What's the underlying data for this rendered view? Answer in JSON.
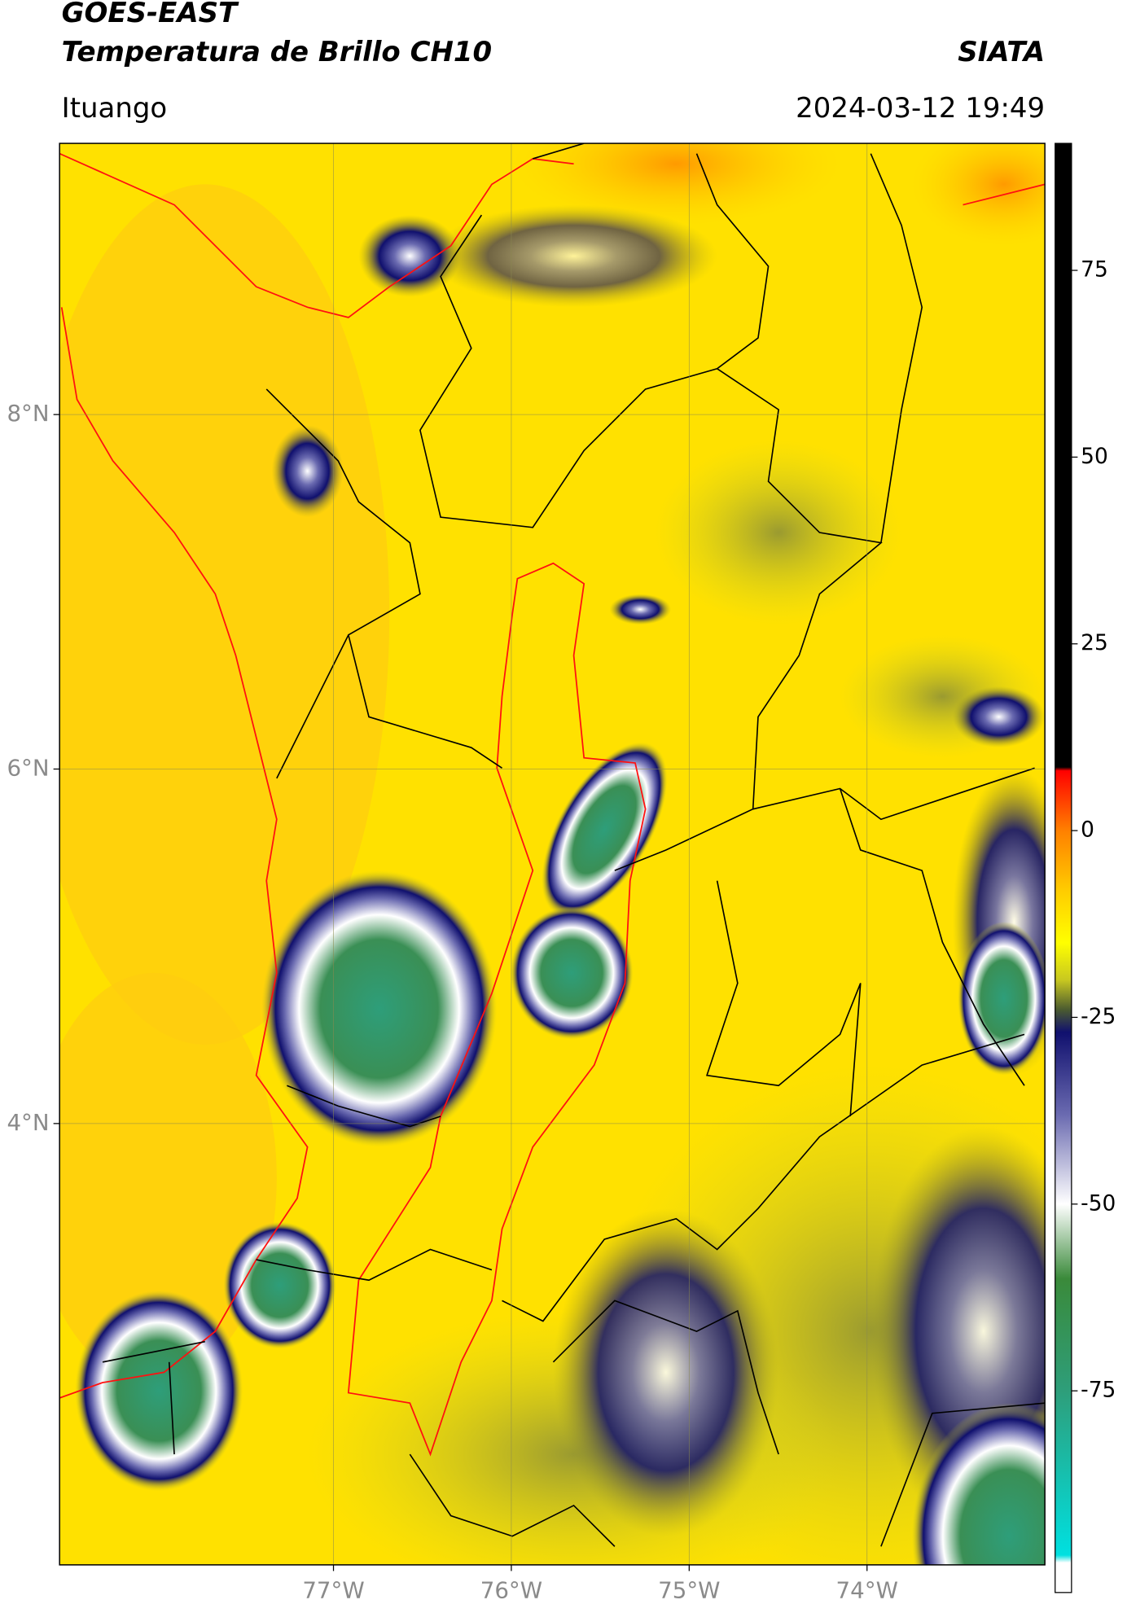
{
  "header": {
    "title": "GOES-EAST",
    "subtitle": "Temperatura de Brillo CH10",
    "agency": "SIATA",
    "location": "Ituango",
    "timestamp": "2024-03-12 19:49"
  },
  "map": {
    "xlim": [
      -78.54,
      -73.0
    ],
    "ylim": [
      1.51,
      9.53
    ],
    "xticks": [
      {
        "value": -77,
        "label": "77°W"
      },
      {
        "value": -76,
        "label": "76°W"
      },
      {
        "value": -75,
        "label": "75°W"
      },
      {
        "value": -74,
        "label": "74°W"
      }
    ],
    "yticks": [
      {
        "value": 8,
        "label": "8°N"
      },
      {
        "value": 6,
        "label": "6°N"
      },
      {
        "value": 4,
        "label": "4°N"
      }
    ],
    "grid": true
  },
  "colorbar": {
    "lim": [
      -102,
      92
    ],
    "ticks": [
      75,
      50,
      25,
      0,
      -25,
      -50,
      -75
    ],
    "colormap": [
      {
        "value": 92,
        "color": "#000000"
      },
      {
        "value": 8.5,
        "color": "#000000"
      },
      {
        "value": 8,
        "color": "#ff0000"
      },
      {
        "value": 0,
        "color": "#ff8000"
      },
      {
        "value": -8,
        "color": "#ffcc00"
      },
      {
        "value": -15,
        "color": "#ffff00"
      },
      {
        "value": -20,
        "color": "#c8c820"
      },
      {
        "value": -24,
        "color": "#4a5a30"
      },
      {
        "value": -27,
        "color": "#10106e"
      },
      {
        "value": -38,
        "color": "#6a6ab0"
      },
      {
        "value": -50,
        "color": "#ffffff"
      },
      {
        "value": -60,
        "color": "#3a8a3a"
      },
      {
        "value": -75,
        "color": "#2e9e7a"
      },
      {
        "value": -97,
        "color": "#00e0e0"
      },
      {
        "value": -98,
        "color": "#ffffff"
      },
      {
        "value": -102,
        "color": "#ffffff"
      }
    ]
  }
}
